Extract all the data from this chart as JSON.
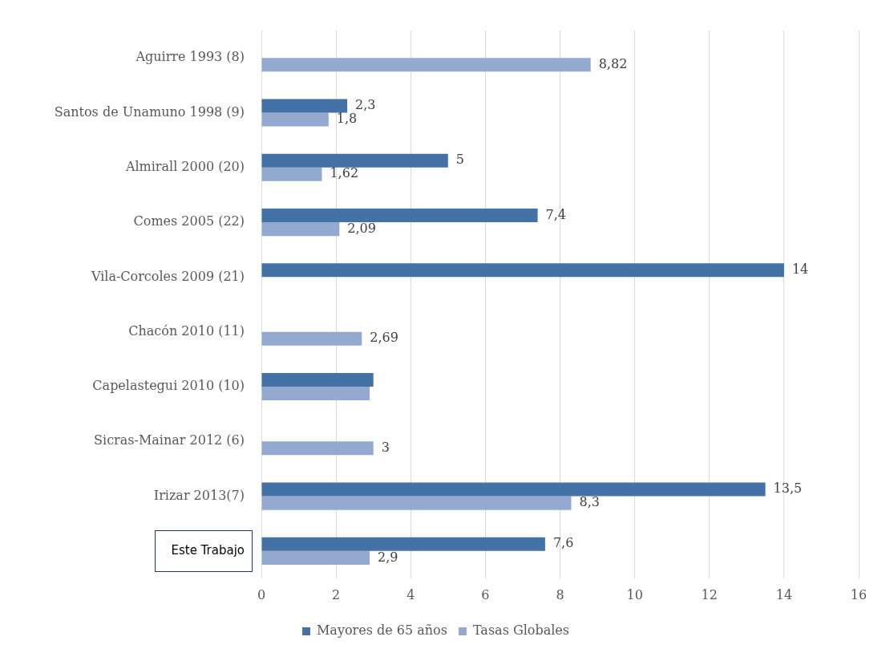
{
  "chart_data": {
    "type": "bar",
    "orientation": "horizontal",
    "categories": [
      "Aguirre 1993 (8)",
      "Santos de Unamuno 1998 (9)",
      "Almirall 2000 (20)",
      "Comes 2005 (22)",
      "Vila-Corcoles 2009 (21)",
      "Chacón 2010 (11)",
      "Capelastegui 2010 (10)",
      "Sicras-Mainar 2012 (6)",
      "Irizar 2013(7)",
      "Este Trabajo"
    ],
    "series": [
      {
        "name": "Mayores de 65 años",
        "color": "#4472a6",
        "values": [
          null,
          2.3,
          5,
          7.4,
          14,
          null,
          3,
          null,
          13.5,
          7.6
        ],
        "value_labels": [
          null,
          "2,3",
          "5",
          "7,4",
          "14",
          null,
          null,
          null,
          "13,5",
          "7,6"
        ]
      },
      {
        "name": "Tasas Globales",
        "color": "#93a9d0",
        "values": [
          8.82,
          1.8,
          1.62,
          2.09,
          null,
          2.69,
          2.9,
          3,
          8.3,
          2.9
        ],
        "value_labels": [
          "8,82",
          "1,8",
          "1,62",
          "2,09",
          null,
          "2,69",
          null,
          "3",
          "8,3",
          "2,9"
        ]
      }
    ],
    "xlim": [
      0,
      16
    ],
    "xticks": [
      0,
      2,
      4,
      6,
      8,
      10,
      12,
      14,
      16
    ],
    "grid": "x",
    "legend": "bottom"
  }
}
